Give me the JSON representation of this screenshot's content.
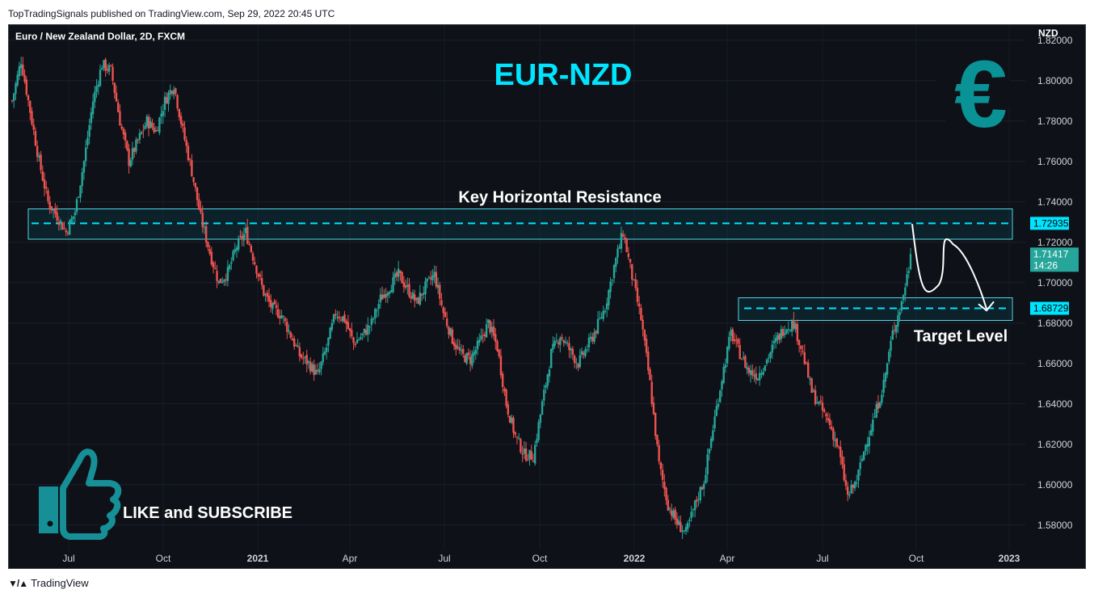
{
  "published": "TopTradingSignals published on TradingView.com, Sep 29, 2022 20:45 UTC",
  "footer": {
    "brand": "TradingView"
  },
  "chart_data": {
    "type": "candlestick",
    "symbol": "Euro / New Zealand Dollar, 2D, FXCM",
    "headline": "EUR-NZD",
    "currency": "NZD",
    "y_ticks": [
      "1.82000",
      "1.80000",
      "1.78000",
      "1.76000",
      "1.74000",
      "1.72000",
      "1.70000",
      "1.68000",
      "1.66000",
      "1.64000",
      "1.62000",
      "1.60000",
      "1.58000"
    ],
    "ylim": [
      1.5675,
      1.8275
    ],
    "x_ticks": [
      "Jul",
      "Oct",
      "2021",
      "Apr",
      "Jul",
      "Oct",
      "2022",
      "Apr",
      "Jul",
      "Oct",
      "2023"
    ],
    "x_ticks_bold": [
      "2021",
      "2022",
      "2023"
    ],
    "price_path": [
      [
        0,
        1.79
      ],
      [
        5,
        1.81
      ],
      [
        10,
        1.785
      ],
      [
        15,
        1.76
      ],
      [
        20,
        1.74
      ],
      [
        25,
        1.733
      ],
      [
        30,
        1.725
      ],
      [
        35,
        1.735
      ],
      [
        40,
        1.76
      ],
      [
        45,
        1.79
      ],
      [
        50,
        1.808
      ],
      [
        55,
        1.805
      ],
      [
        60,
        1.78
      ],
      [
        65,
        1.76
      ],
      [
        70,
        1.77
      ],
      [
        75,
        1.78
      ],
      [
        80,
        1.775
      ],
      [
        85,
        1.79
      ],
      [
        90,
        1.798
      ],
      [
        95,
        1.775
      ],
      [
        100,
        1.755
      ],
      [
        105,
        1.732
      ],
      [
        110,
        1.715
      ],
      [
        115,
        1.7
      ],
      [
        120,
        1.705
      ],
      [
        125,
        1.718
      ],
      [
        130,
        1.725
      ],
      [
        135,
        1.71
      ],
      [
        140,
        1.695
      ],
      [
        145,
        1.687
      ],
      [
        150,
        1.684
      ],
      [
        155,
        1.674
      ],
      [
        160,
        1.664
      ],
      [
        165,
        1.66
      ],
      [
        170,
        1.654
      ],
      [
        175,
        1.668
      ],
      [
        180,
        1.685
      ],
      [
        185,
        1.682
      ],
      [
        190,
        1.67
      ],
      [
        195,
        1.674
      ],
      [
        200,
        1.68
      ],
      [
        205,
        1.692
      ],
      [
        210,
        1.698
      ],
      [
        215,
        1.704
      ],
      [
        220,
        1.697
      ],
      [
        225,
        1.69
      ],
      [
        230,
        1.698
      ],
      [
        235,
        1.704
      ],
      [
        240,
        1.685
      ],
      [
        245,
        1.672
      ],
      [
        250,
        1.664
      ],
      [
        255,
        1.662
      ],
      [
        260,
        1.67
      ],
      [
        265,
        1.68
      ],
      [
        270,
        1.668
      ],
      [
        275,
        1.64
      ],
      [
        280,
        1.624
      ],
      [
        285,
        1.615
      ],
      [
        290,
        1.614
      ],
      [
        295,
        1.64
      ],
      [
        300,
        1.665
      ],
      [
        305,
        1.674
      ],
      [
        310,
        1.667
      ],
      [
        315,
        1.66
      ],
      [
        320,
        1.668
      ],
      [
        325,
        1.677
      ],
      [
        330,
        1.688
      ],
      [
        335,
        1.708
      ],
      [
        340,
        1.725
      ],
      [
        345,
        1.703
      ],
      [
        350,
        1.682
      ],
      [
        355,
        1.65
      ],
      [
        360,
        1.61
      ],
      [
        365,
        1.59
      ],
      [
        370,
        1.581
      ],
      [
        375,
        1.576
      ],
      [
        380,
        1.59
      ],
      [
        385,
        1.602
      ],
      [
        390,
        1.628
      ],
      [
        395,
        1.653
      ],
      [
        400,
        1.675
      ],
      [
        405,
        1.665
      ],
      [
        410,
        1.656
      ],
      [
        415,
        1.654
      ],
      [
        420,
        1.662
      ],
      [
        425,
        1.671
      ],
      [
        430,
        1.678
      ],
      [
        435,
        1.68
      ],
      [
        440,
        1.665
      ],
      [
        445,
        1.646
      ],
      [
        450,
        1.638
      ],
      [
        455,
        1.63
      ],
      [
        460,
        1.617
      ],
      [
        465,
        1.594
      ],
      [
        470,
        1.602
      ],
      [
        475,
        1.62
      ],
      [
        480,
        1.634
      ],
      [
        485,
        1.65
      ],
      [
        490,
        1.675
      ],
      [
        495,
        1.69
      ],
      [
        500,
        1.712
      ]
    ],
    "last_bar_index": 500,
    "annotations": {
      "resistance_label": "Key Horizontal Resistance",
      "resistance_level": "1.72935",
      "resistance_value": 1.72935,
      "resistance_zone": [
        1.7215,
        1.7365
      ],
      "target_label": "Target Level",
      "target_level": "1.68729",
      "target_value": 1.68729,
      "target_zone": [
        1.6813,
        1.6925
      ],
      "current_price": "1.71417",
      "countdown": "14:26",
      "projected_path": [
        [
          1.729,
          0
        ],
        [
          1.699,
          0.25
        ],
        [
          1.719,
          0.55
        ],
        [
          1.687,
          1.0
        ]
      ]
    },
    "promo": "LIKE and SUBSCRIBE",
    "colors": {
      "up": "#26a69a",
      "down": "#ef5350",
      "accent": "#00e5ff",
      "euro": "#0a9396",
      "thumb": "#178f96",
      "background": "#0e1117"
    }
  }
}
